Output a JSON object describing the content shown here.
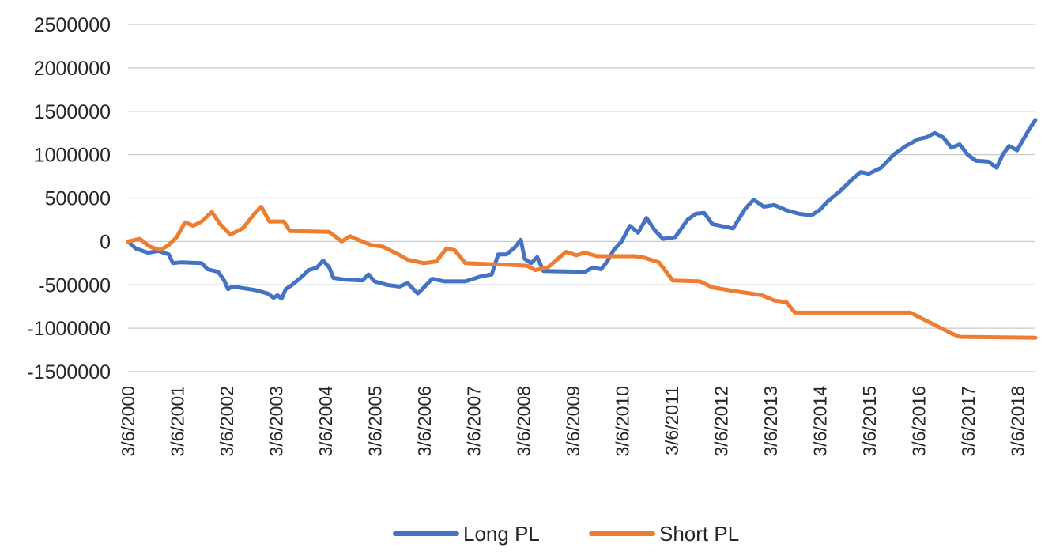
{
  "chart_data": {
    "type": "line",
    "title": "",
    "xlabel": "",
    "ylabel": "",
    "ylim": [
      -1500000,
      2500000
    ],
    "yticks": [
      2500000,
      2000000,
      1500000,
      1000000,
      500000,
      0,
      -500000,
      -1000000,
      -1500000
    ],
    "ytick_labels": [
      "2500000",
      "2000000",
      "1500000",
      "1000000",
      "500000",
      "0",
      "-500000",
      "-1000000",
      "-1500000"
    ],
    "xlim": [
      "2000-03-06",
      "2018-07-15"
    ],
    "xticks": [
      "2000-03-06",
      "2001-03-06",
      "2002-03-06",
      "2003-03-06",
      "2004-03-06",
      "2005-03-06",
      "2006-03-06",
      "2007-03-06",
      "2008-03-06",
      "2009-03-06",
      "2010-03-06",
      "2011-03-06",
      "2012-03-06",
      "2013-03-06",
      "2014-03-06",
      "2015-03-06",
      "2016-03-06",
      "2017-03-06",
      "2018-03-06"
    ],
    "xtick_labels": [
      "3/6/2000",
      "3/6/2001",
      "3/6/2002",
      "3/6/2003",
      "3/6/2004",
      "3/6/2005",
      "3/6/2006",
      "3/6/2007",
      "3/6/2008",
      "3/6/2009",
      "3/6/2010",
      "3/6/2011",
      "3/6/2012",
      "3/6/2013",
      "3/6/2014",
      "3/6/2015",
      "3/6/2016",
      "3/6/2017",
      "3/6/2018"
    ],
    "grid": true,
    "legend_position": "bottom",
    "series": [
      {
        "name": "Long PL",
        "color": "#4472C4",
        "points": [
          [
            "2000-03-06",
            0
          ],
          [
            "2000-05-01",
            -80000
          ],
          [
            "2000-08-01",
            -130000
          ],
          [
            "2000-10-15",
            -110000
          ],
          [
            "2001-01-01",
            -150000
          ],
          [
            "2001-02-01",
            -250000
          ],
          [
            "2001-04-01",
            -240000
          ],
          [
            "2001-09-01",
            -250000
          ],
          [
            "2001-10-15",
            -320000
          ],
          [
            "2002-01-01",
            -350000
          ],
          [
            "2002-02-15",
            -450000
          ],
          [
            "2002-03-15",
            -550000
          ],
          [
            "2002-04-15",
            -520000
          ],
          [
            "2002-10-01",
            -560000
          ],
          [
            "2003-01-01",
            -600000
          ],
          [
            "2003-02-15",
            -650000
          ],
          [
            "2003-03-15",
            -620000
          ],
          [
            "2003-04-15",
            -660000
          ],
          [
            "2003-05-15",
            -550000
          ],
          [
            "2003-07-01",
            -500000
          ],
          [
            "2003-09-01",
            -420000
          ],
          [
            "2003-11-01",
            -330000
          ],
          [
            "2004-01-01",
            -300000
          ],
          [
            "2004-02-15",
            -220000
          ],
          [
            "2004-04-01",
            -300000
          ],
          [
            "2004-05-01",
            -420000
          ],
          [
            "2004-08-01",
            -440000
          ],
          [
            "2004-12-01",
            -450000
          ],
          [
            "2005-01-15",
            -380000
          ],
          [
            "2005-03-01",
            -460000
          ],
          [
            "2005-06-01",
            -500000
          ],
          [
            "2005-09-01",
            -520000
          ],
          [
            "2005-11-01",
            -480000
          ],
          [
            "2006-01-15",
            -600000
          ],
          [
            "2006-03-01",
            -530000
          ],
          [
            "2006-05-01",
            -430000
          ],
          [
            "2006-08-01",
            -460000
          ],
          [
            "2007-01-01",
            -460000
          ],
          [
            "2007-05-01",
            -400000
          ],
          [
            "2007-07-15",
            -380000
          ],
          [
            "2007-09-01",
            -150000
          ],
          [
            "2007-11-01",
            -150000
          ],
          [
            "2008-01-01",
            -70000
          ],
          [
            "2008-02-15",
            20000
          ],
          [
            "2008-03-15",
            -200000
          ],
          [
            "2008-05-01",
            -250000
          ],
          [
            "2008-06-15",
            -180000
          ],
          [
            "2008-08-01",
            -340000
          ],
          [
            "2009-06-01",
            -350000
          ],
          [
            "2009-08-01",
            -300000
          ],
          [
            "2009-10-01",
            -320000
          ],
          [
            "2009-11-15",
            -230000
          ],
          [
            "2010-01-01",
            -100000
          ],
          [
            "2010-03-01",
            0
          ],
          [
            "2010-05-01",
            180000
          ],
          [
            "2010-07-01",
            100000
          ],
          [
            "2010-09-01",
            270000
          ],
          [
            "2010-11-01",
            130000
          ],
          [
            "2011-01-01",
            30000
          ],
          [
            "2011-04-01",
            50000
          ],
          [
            "2011-07-01",
            250000
          ],
          [
            "2011-09-01",
            320000
          ],
          [
            "2011-11-01",
            330000
          ],
          [
            "2012-01-01",
            200000
          ],
          [
            "2012-06-01",
            150000
          ],
          [
            "2012-09-01",
            380000
          ],
          [
            "2012-11-01",
            480000
          ],
          [
            "2013-01-15",
            400000
          ],
          [
            "2013-04-01",
            420000
          ],
          [
            "2013-07-01",
            360000
          ],
          [
            "2013-10-01",
            320000
          ],
          [
            "2014-01-01",
            300000
          ],
          [
            "2014-03-01",
            360000
          ],
          [
            "2014-05-01",
            460000
          ],
          [
            "2014-08-01",
            580000
          ],
          [
            "2014-11-01",
            720000
          ],
          [
            "2015-01-01",
            800000
          ],
          [
            "2015-03-01",
            780000
          ],
          [
            "2015-06-01",
            850000
          ],
          [
            "2015-09-01",
            1000000
          ],
          [
            "2015-12-01",
            1100000
          ],
          [
            "2016-03-01",
            1180000
          ],
          [
            "2016-05-01",
            1200000
          ],
          [
            "2016-07-01",
            1250000
          ],
          [
            "2016-09-01",
            1200000
          ],
          [
            "2016-11-01",
            1080000
          ],
          [
            "2017-01-01",
            1120000
          ],
          [
            "2017-03-01",
            1000000
          ],
          [
            "2017-05-01",
            930000
          ],
          [
            "2017-08-01",
            920000
          ],
          [
            "2017-10-01",
            850000
          ],
          [
            "2017-11-15",
            1000000
          ],
          [
            "2018-01-01",
            1100000
          ],
          [
            "2018-03-01",
            1050000
          ],
          [
            "2018-06-01",
            1300000
          ],
          [
            "2018-07-15",
            1400000
          ]
        ]
      },
      {
        "name": "Short PL",
        "color": "#ED7D31",
        "points": [
          [
            "2000-03-06",
            0
          ],
          [
            "2000-06-01",
            30000
          ],
          [
            "2000-08-15",
            -60000
          ],
          [
            "2000-11-01",
            -100000
          ],
          [
            "2001-01-01",
            -40000
          ],
          [
            "2001-03-01",
            50000
          ],
          [
            "2001-05-01",
            220000
          ],
          [
            "2001-07-01",
            180000
          ],
          [
            "2001-09-01",
            230000
          ],
          [
            "2001-11-15",
            340000
          ],
          [
            "2002-01-15",
            200000
          ],
          [
            "2002-04-01",
            80000
          ],
          [
            "2002-07-01",
            150000
          ],
          [
            "2002-10-01",
            330000
          ],
          [
            "2002-11-15",
            400000
          ],
          [
            "2003-01-15",
            230000
          ],
          [
            "2003-05-01",
            230000
          ],
          [
            "2003-06-15",
            120000
          ],
          [
            "2004-04-01",
            110000
          ],
          [
            "2004-07-01",
            0
          ],
          [
            "2004-09-01",
            60000
          ],
          [
            "2004-12-01",
            0
          ],
          [
            "2005-02-01",
            -40000
          ],
          [
            "2005-05-01",
            -60000
          ],
          [
            "2005-08-01",
            -130000
          ],
          [
            "2005-11-01",
            -210000
          ],
          [
            "2006-03-01",
            -250000
          ],
          [
            "2006-06-01",
            -230000
          ],
          [
            "2006-08-15",
            -80000
          ],
          [
            "2006-10-15",
            -100000
          ],
          [
            "2007-01-01",
            -250000
          ],
          [
            "2007-06-01",
            -260000
          ],
          [
            "2007-12-01",
            -270000
          ],
          [
            "2008-04-01",
            -280000
          ],
          [
            "2008-06-01",
            -330000
          ],
          [
            "2008-09-01",
            -300000
          ],
          [
            "2008-11-15",
            -200000
          ],
          [
            "2009-01-15",
            -120000
          ],
          [
            "2009-04-01",
            -160000
          ],
          [
            "2009-06-01",
            -130000
          ],
          [
            "2009-09-01",
            -170000
          ],
          [
            "2010-06-01",
            -170000
          ],
          [
            "2010-08-01",
            -180000
          ],
          [
            "2010-12-01",
            -240000
          ],
          [
            "2011-03-15",
            -450000
          ],
          [
            "2011-10-01",
            -460000
          ],
          [
            "2012-01-01",
            -530000
          ],
          [
            "2012-06-01",
            -570000
          ],
          [
            "2013-01-01",
            -620000
          ],
          [
            "2013-04-01",
            -680000
          ],
          [
            "2013-07-01",
            -700000
          ],
          [
            "2013-09-01",
            -820000
          ],
          [
            "2016-01-01",
            -820000
          ],
          [
            "2016-06-01",
            -940000
          ],
          [
            "2016-11-01",
            -1060000
          ],
          [
            "2017-01-01",
            -1100000
          ],
          [
            "2018-07-15",
            -1110000
          ]
        ]
      }
    ]
  }
}
